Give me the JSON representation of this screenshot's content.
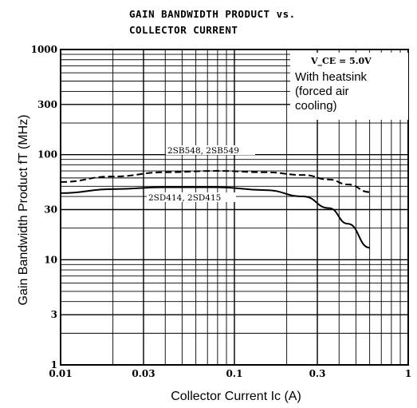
{
  "title_line1": "GAIN BANDWIDTH PRODUCT vs.",
  "title_line2": "COLLECTOR CURRENT",
  "note": {
    "condition": "V_CE = 5.0V",
    "lines": [
      "With heatsink",
      "(forced air",
      "cooling)"
    ]
  },
  "chart_data": {
    "type": "line",
    "title": "GAIN BANDWIDTH PRODUCT vs. COLLECTOR CURRENT",
    "xlabel": "Collector Current  Ic  (A)",
    "ylabel": "Gain Bandwidth Product  fT  (MHz)",
    "x_scale": "log",
    "y_scale": "log",
    "xlim": [
      0.01,
      1
    ],
    "ylim": [
      1,
      1000
    ],
    "x_ticks": [
      {
        "value": 0.01,
        "label": "0.01"
      },
      {
        "value": 0.03,
        "label": "0.03"
      },
      {
        "value": 0.1,
        "label": "0.1"
      },
      {
        "value": 0.3,
        "label": "0.3"
      },
      {
        "value": 1,
        "label": "1"
      }
    ],
    "y_ticks": [
      {
        "value": 1,
        "label": "1"
      },
      {
        "value": 3,
        "label": "3"
      },
      {
        "value": 10,
        "label": "10"
      },
      {
        "value": 30,
        "label": "30"
      },
      {
        "value": 100,
        "label": "100"
      },
      {
        "value": 300,
        "label": "300"
      },
      {
        "value": 1000,
        "label": "1000"
      }
    ],
    "grid": true,
    "series": [
      {
        "name": "2SB548, 2SB549",
        "style": "dashed",
        "color": "#000000",
        "x": [
          0.01,
          0.02,
          0.04,
          0.08,
          0.15,
          0.25,
          0.35,
          0.45,
          0.6
        ],
        "y": [
          55,
          62,
          68,
          70,
          68,
          64,
          58,
          52,
          44
        ]
      },
      {
        "name": "2SD414, 2SD415",
        "style": "solid",
        "color": "#000000",
        "x": [
          0.01,
          0.02,
          0.04,
          0.08,
          0.15,
          0.25,
          0.35,
          0.45,
          0.6
        ],
        "y": [
          43,
          47,
          49,
          49,
          46,
          40,
          31,
          22,
          13
        ]
      }
    ]
  }
}
